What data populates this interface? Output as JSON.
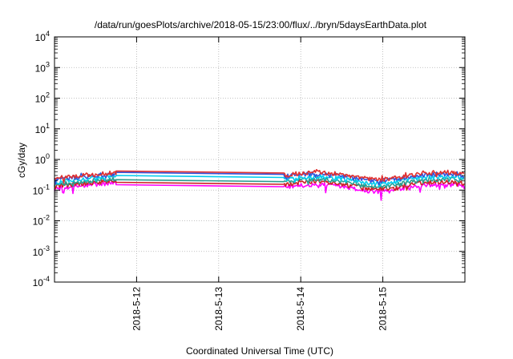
{
  "chart_data": {
    "type": "line",
    "title": "/data/run/goesPlots/archive/2018-05-15/23:00/flux/../bryn/5daysEarthData.plot",
    "xlabel": "Coordinated Universal Time (UTC)",
    "ylabel": "cGy/day",
    "y_scale": "log",
    "x_range": [
      "2018-05-11 00:00",
      "2018-05-16 00:00"
    ],
    "x_ticks": [
      "2018-5-12",
      "2018-5-13",
      "2018-5-14",
      "2018-5-15"
    ],
    "y_range": [
      0.0001,
      10000
    ],
    "y_ticks": [
      {
        "base": "10",
        "exp": "-4"
      },
      {
        "base": "10",
        "exp": "-3"
      },
      {
        "base": "10",
        "exp": "-2"
      },
      {
        "base": "10",
        "exp": "-1"
      },
      {
        "base": "10",
        "exp": "0"
      },
      {
        "base": "10",
        "exp": "1"
      },
      {
        "base": "10",
        "exp": "2"
      },
      {
        "base": "10",
        "exp": "3"
      },
      {
        "base": "10",
        "exp": "4"
      }
    ],
    "grid": true,
    "data_gap": [
      "2018-05-11 18:00",
      "2018-05-13 19:00"
    ],
    "series": [
      {
        "color": "#ff00ff",
        "level_start": 0.11,
        "level_gap": 0.15,
        "level_end": 0.12,
        "min": 0.035,
        "max": 0.2
      },
      {
        "color": "#cc2222",
        "level_start": 0.13,
        "level_gap": 0.18,
        "level_end": 0.15,
        "min": 0.1,
        "max": 0.25
      },
      {
        "color": "#2a9d8f",
        "level_start": 0.15,
        "level_gap": 0.22,
        "level_end": 0.18,
        "min": 0.11,
        "max": 0.3
      },
      {
        "color": "#00ccee",
        "level_start": 0.18,
        "level_gap": 0.3,
        "level_end": 0.22,
        "min": 0.12,
        "max": 0.38
      },
      {
        "color": "#3355dd",
        "level_start": 0.22,
        "level_gap": 0.38,
        "level_end": 0.27,
        "min": 0.13,
        "max": 0.45
      },
      {
        "color": "#e03030",
        "level_start": 0.24,
        "level_gap": 0.42,
        "level_end": 0.3,
        "min": 0.14,
        "max": 0.5
      }
    ]
  }
}
